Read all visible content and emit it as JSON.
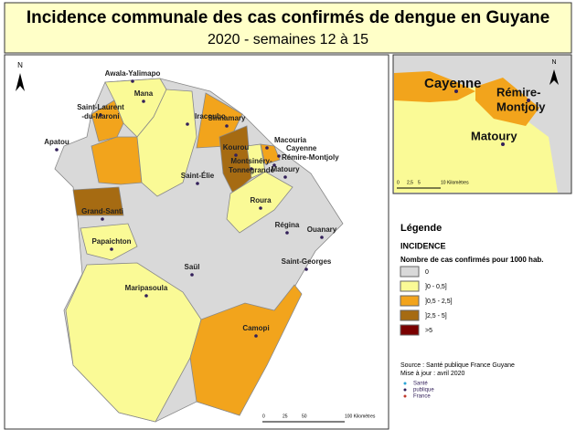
{
  "header": {
    "title": "Incidence communale des cas confirmés de dengue en Guyane",
    "subtitle": "2020 - semaines 12 à 15"
  },
  "map": {
    "north": "N",
    "communes": [
      {
        "lines": [
          "Awala-Yalimapo"
        ]
      },
      {
        "lines": [
          "Mana"
        ]
      },
      {
        "lines": [
          "Saint-Laurent",
          "-du-Maroni"
        ]
      },
      {
        "lines": [
          "Iracoubo"
        ]
      },
      {
        "lines": [
          "Sinnamary"
        ]
      },
      {
        "lines": [
          "Apatou"
        ]
      },
      {
        "lines": [
          "Kourou"
        ]
      },
      {
        "lines": [
          "Macouria"
        ]
      },
      {
        "lines": [
          "Cayenne"
        ]
      },
      {
        "lines": [
          "Rémire-Montjoly"
        ]
      },
      {
        "lines": [
          "Montsinéry-",
          "Tonnegrande"
        ]
      },
      {
        "lines": [
          "Matoury"
        ]
      },
      {
        "lines": [
          "Saint-Élie"
        ]
      },
      {
        "lines": [
          "Roura"
        ]
      },
      {
        "lines": [
          "Grand-Santi"
        ]
      },
      {
        "lines": [
          "Régina"
        ]
      },
      {
        "lines": [
          "Ouanary"
        ]
      },
      {
        "lines": [
          "Papaichton"
        ]
      },
      {
        "lines": [
          "Saint-Georges"
        ]
      },
      {
        "lines": [
          "Saül"
        ]
      },
      {
        "lines": [
          "Maripasoula"
        ]
      },
      {
        "lines": [
          "Camopi"
        ]
      }
    ],
    "scale_labels": [
      "0",
      "25",
      "50",
      "100 Kilomètres"
    ]
  },
  "inset": {
    "north": "N",
    "labels": [
      {
        "lines": [
          "Cayenne"
        ]
      },
      {
        "lines": [
          "Rémire-",
          "Montjoly"
        ]
      },
      {
        "lines": [
          "Matoury"
        ]
      }
    ],
    "scale_labels": [
      "0",
      "2,5",
      "5",
      "10 Kilomètres"
    ]
  },
  "legend": {
    "title": "Légende",
    "heading": "INCIDENCE",
    "subheading": "Nombre de cas confirmés pour 1000 hab.",
    "classes": [
      {
        "label": "0",
        "color": "#d9d9d9"
      },
      {
        "label": "]0 - 0,5]",
        "color": "#fafa96"
      },
      {
        "label": "]0,5 - 2,5]",
        "color": "#f2a41c"
      },
      {
        "label": "]2,5 - 5]",
        "color": "#a66b12"
      },
      {
        "label": ">5",
        "color": "#7a0000"
      }
    ]
  },
  "source": {
    "lines": [
      "Source : Santé publique France Guyane",
      "Mise à jour : avril 2020"
    ],
    "logo": [
      "Santé",
      "publique",
      "France"
    ]
  }
}
